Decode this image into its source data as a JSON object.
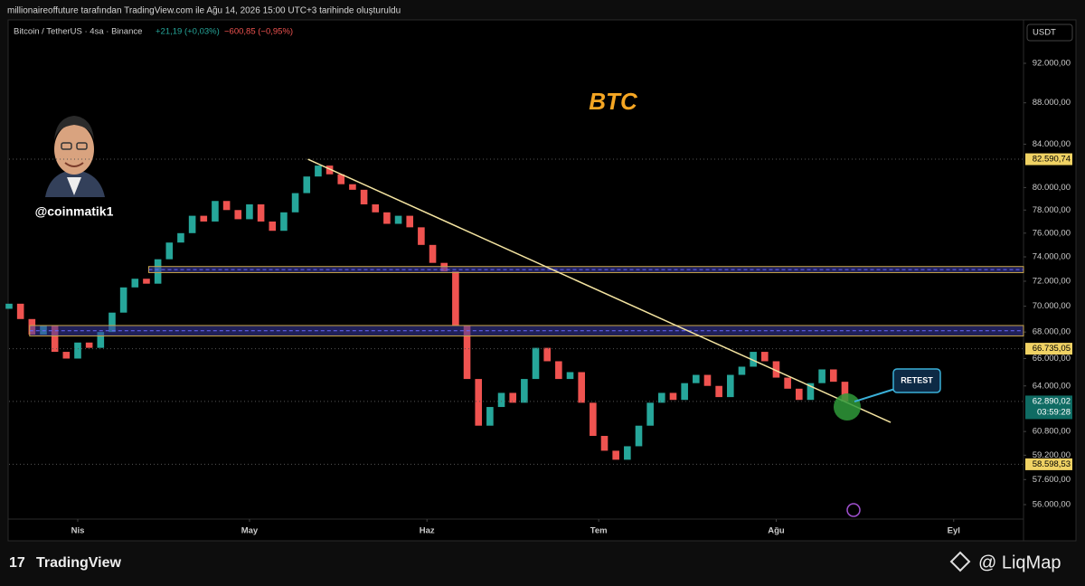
{
  "header": {
    "text": "millionaireoffuture tarafından TradingView.com ile Ağu 14, 2026 15:00 UTC+3 tarihinde oluşturuldu"
  },
  "footer": {
    "brand": "TradingView",
    "source": "@ LiqMap"
  },
  "avatar_handle": "@coinmatik1",
  "chart_data": {
    "type": "candlestick",
    "symbol": "Bitcoin / TetherUS · 4sa · Binance",
    "change_up": "+21,19 (+0,03%)",
    "change_down": "−600,85 (−0,95%)",
    "currency": "USDT",
    "annotation": "BTC",
    "up_color": "#26a69a",
    "down_color": "#ef5350",
    "log_scale": true,
    "open": [
      69800,
      70200,
      69000,
      67800,
      68500,
      66500,
      66000,
      67200,
      66800,
      68000,
      69500,
      71500,
      72200,
      71800,
      73800,
      75200,
      76000,
      77500,
      77000,
      78800,
      78000,
      77200,
      78500,
      77000,
      76200,
      77800,
      79500,
      81000,
      82000,
      81200,
      80300,
      79800,
      78500,
      77800,
      76800,
      77500,
      76500,
      75000,
      73500,
      72800,
      68500,
      64500,
      61200,
      62500,
      63500,
      62800,
      64500,
      66800,
      65800,
      64500,
      65000,
      62800,
      60500,
      59500,
      58900,
      59800,
      61200,
      62800,
      63500,
      63000,
      64200,
      64800,
      64000,
      63200,
      64800,
      65400,
      66500,
      65800,
      64600,
      63800,
      63000,
      64200,
      65200,
      64300
    ],
    "close": [
      70200,
      69000,
      67800,
      68500,
      66500,
      66000,
      67200,
      66800,
      68000,
      69500,
      71500,
      72200,
      71800,
      73800,
      75200,
      76000,
      77500,
      77000,
      78800,
      78000,
      77200,
      78500,
      77000,
      76200,
      77800,
      79500,
      81000,
      82000,
      81200,
      80300,
      79800,
      78500,
      77800,
      76800,
      77500,
      76500,
      75000,
      73500,
      72800,
      68500,
      64500,
      61200,
      62500,
      63500,
      62800,
      64500,
      66800,
      65800,
      64500,
      65000,
      62800,
      60500,
      59500,
      58900,
      59800,
      61200,
      62800,
      63500,
      63000,
      64200,
      64800,
      64000,
      63200,
      64800,
      65400,
      66500,
      65800,
      64600,
      63800,
      63000,
      64200,
      65200,
      64300,
      62890
    ],
    "xlim": [
      0,
      88.6
    ],
    "xticks": [
      {
        "value": 6,
        "label": "Nis"
      },
      {
        "value": 21,
        "label": "May"
      },
      {
        "value": 36.5,
        "label": "Haz"
      },
      {
        "value": 51.5,
        "label": "Tem"
      },
      {
        "value": 67,
        "label": "Ağu"
      },
      {
        "value": 82.5,
        "label": "Eyl"
      }
    ],
    "ylim": [
      53767,
      96604
    ],
    "yticks": [
      {
        "value": 92000,
        "label": "92.000,00"
      },
      {
        "value": 88000,
        "label": "88.000,00"
      },
      {
        "value": 84000,
        "label": "84.000,00"
      },
      {
        "value": 80000,
        "label": "80.000,00"
      },
      {
        "value": 78000,
        "label": "78.000,00"
      },
      {
        "value": 76000,
        "label": "76.000,00"
      },
      {
        "value": 74000,
        "label": "74.000,00"
      },
      {
        "value": 72000,
        "label": "72.000,00"
      },
      {
        "value": 70000,
        "label": "70.000,00"
      },
      {
        "value": 68000,
        "label": "68.000,00"
      },
      {
        "value": 66000,
        "label": "66.000,00"
      },
      {
        "value": 64000,
        "label": "64.000,00"
      },
      {
        "value": 60800,
        "label": "60.800,00"
      },
      {
        "value": 59200,
        "label": "59.200,00"
      },
      {
        "value": 57600,
        "label": "57.600,00"
      },
      {
        "value": 56000,
        "label": "56.000,00"
      }
    ],
    "price_labels": [
      {
        "value": 82590.74,
        "label": "82.590,74",
        "color": "#f0d264"
      },
      {
        "value": 66735.05,
        "label": "66.735,05",
        "color": "#f0d264"
      },
      {
        "value": 62890.02,
        "label": "62.890,02",
        "color": "#0f6b63"
      },
      {
        "value": 58598.53,
        "label": "58.598,53",
        "color": "#f0d264"
      }
    ],
    "countdown": "03:59:28",
    "trendline": {
      "x": [
        26.1,
        77
      ],
      "y": [
        82590,
        61430
      ],
      "color": "#f3e3a0"
    },
    "zones": [
      {
        "x_start": 12.2,
        "y": [
          72700,
          73200
        ],
        "color": "#3a3aa0"
      },
      {
        "x_start": 1.8,
        "y": [
          67700,
          68500
        ],
        "color": "#3a3aa0"
      }
    ],
    "retest": {
      "x": 73.2,
      "y": 62500,
      "label": "RETEST"
    }
  }
}
